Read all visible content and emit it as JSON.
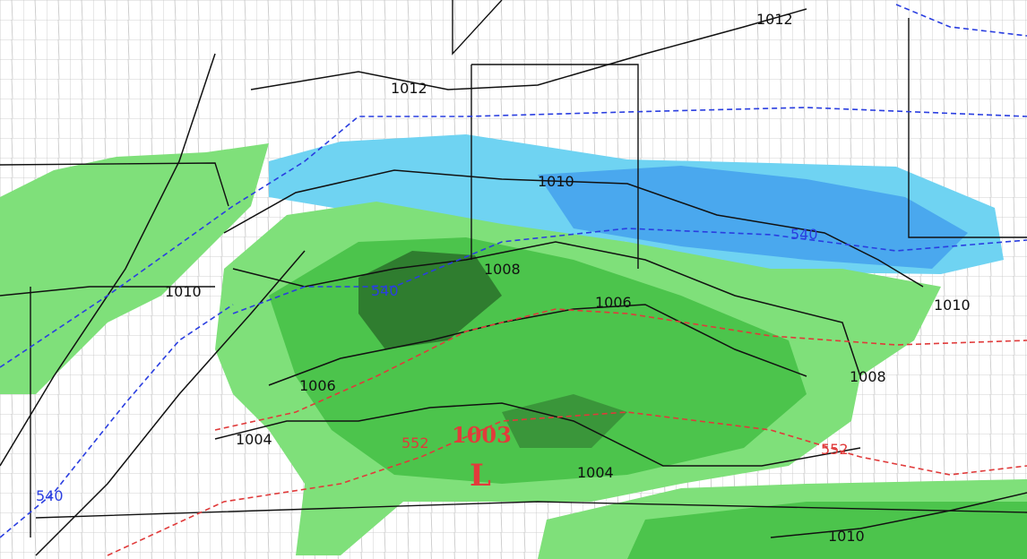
{
  "map": {
    "colors": {
      "rain_light": "#7fe07a",
      "rain_mid": "#4cc44c",
      "rain_heavy": "#2f7d2f",
      "snow_light": "#6fd3f2",
      "snow_mid": "#4aa8ee",
      "isobar": "#111111",
      "thickness_540": "#2a3ee0",
      "thickness_552": "#e03a3a",
      "county_lines": "#b5b5b5"
    },
    "isobars": [
      {
        "label": "1012"
      },
      {
        "label": "1012"
      },
      {
        "label": "1010"
      },
      {
        "label": "1010"
      },
      {
        "label": "1008"
      },
      {
        "label": "1006"
      },
      {
        "label": "1010"
      },
      {
        "label": "1006"
      },
      {
        "label": "1008"
      },
      {
        "label": "1004"
      },
      {
        "label": "1004"
      },
      {
        "label": "1010"
      }
    ],
    "thickness": [
      {
        "label": "540"
      },
      {
        "label": "540"
      },
      {
        "label": "540"
      },
      {
        "label": "552"
      },
      {
        "label": "552"
      }
    ],
    "low": {
      "symbol": "L",
      "pressure": "1003"
    }
  }
}
